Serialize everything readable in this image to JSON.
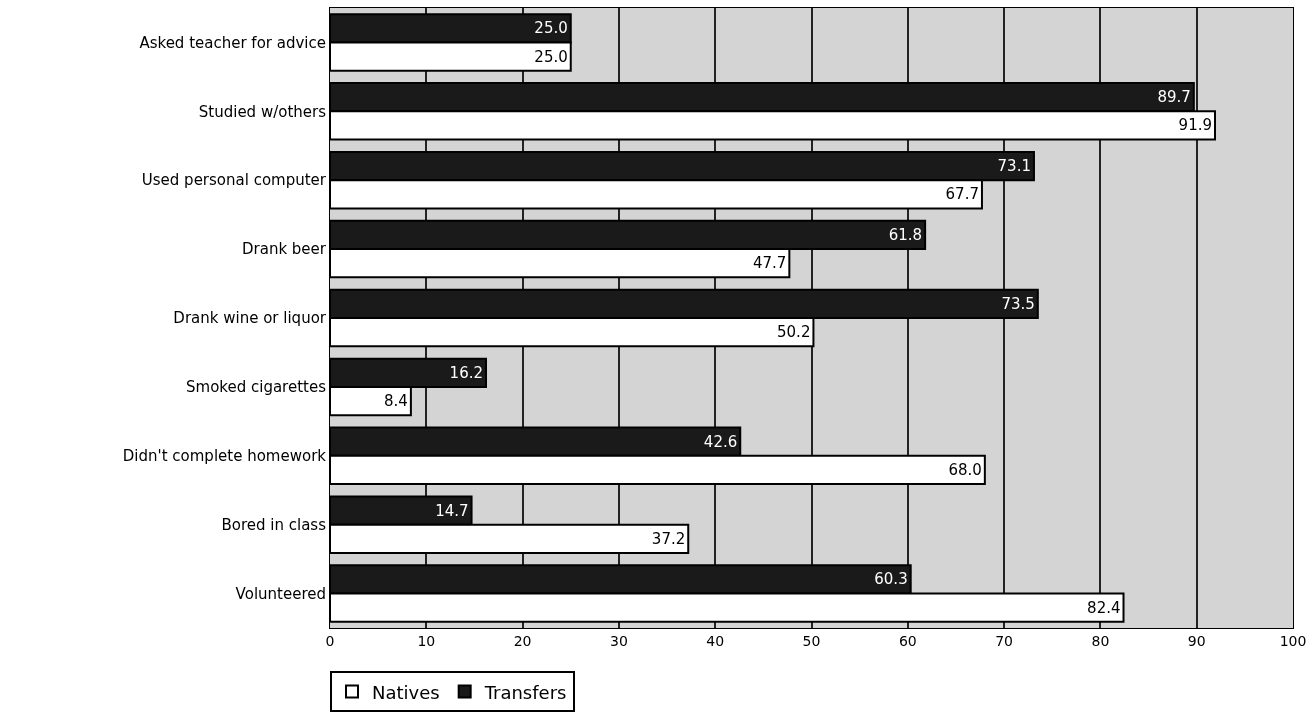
{
  "chart_data": {
    "type": "bar",
    "orientation": "horizontal",
    "categories": [
      "Asked teacher for advice",
      "Studied w/others",
      "Used personal computer",
      "Drank beer",
      "Drank wine or liquor",
      "Smoked cigarettes",
      "Didn't complete homework",
      "Bored in class",
      "Volunteered"
    ],
    "series": [
      {
        "name": "Natives",
        "color": "#ffffff",
        "values": [
          25.0,
          91.9,
          67.7,
          47.7,
          50.2,
          8.4,
          68.0,
          37.2,
          82.4
        ],
        "value_labels": [
          "25.0",
          "91.9",
          "67.7",
          "47.7",
          "50.2",
          "8.4",
          "68.0",
          "37.2",
          "82.4"
        ]
      },
      {
        "name": "Transfers",
        "color": "#1a1a1a",
        "values": [
          25.0,
          89.7,
          73.1,
          61.8,
          73.5,
          16.2,
          42.6,
          14.7,
          60.3
        ],
        "value_labels": [
          "25.0",
          "89.7",
          "73.1",
          "61.8",
          "73.5",
          "16.2",
          "42.6",
          "14.7",
          "60.3"
        ]
      }
    ],
    "xlim": [
      0,
      100
    ],
    "xticks": [
      0,
      10,
      20,
      30,
      40,
      50,
      60,
      70,
      80,
      90,
      100
    ],
    "grid": "x",
    "legend": "bottom left"
  }
}
